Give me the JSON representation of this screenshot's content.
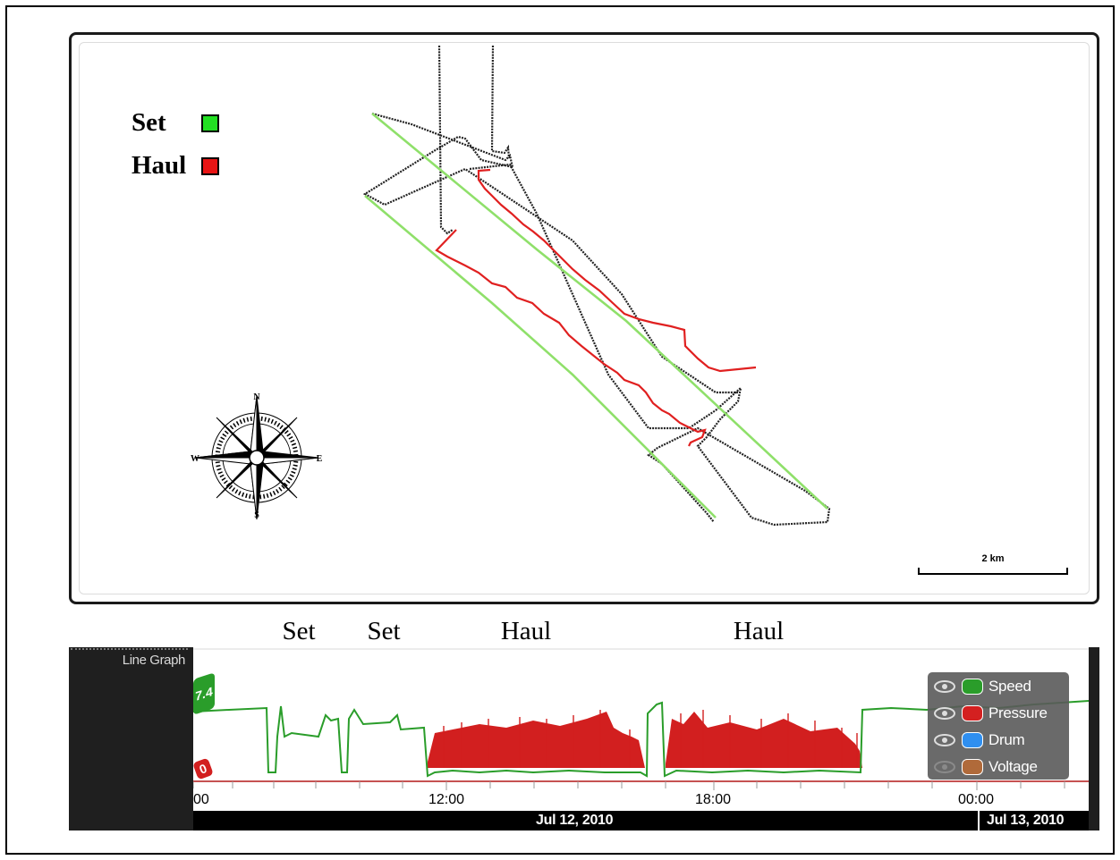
{
  "map": {
    "legend": [
      {
        "label": "Set",
        "color": "#22e022"
      },
      {
        "label": "Haul",
        "color": "#e81414"
      }
    ],
    "compass": {
      "n": "N",
      "s": "S",
      "e": "E",
      "w": "W"
    },
    "scalebar_label": "2 km"
  },
  "annotations": [
    {
      "label": "Set"
    },
    {
      "label": "Set"
    },
    {
      "label": "Haul"
    },
    {
      "label": "Haul"
    }
  ],
  "line_graph": {
    "title": "Line Graph",
    "speed_badge": "7.4",
    "pressure_badge": "0",
    "time_ticks": [
      "00",
      "12:00",
      "18:00",
      "00:00"
    ],
    "dates": [
      "Jul 12, 2010",
      "Jul 13, 2010"
    ],
    "series": [
      {
        "name": "Speed",
        "color": "#2a9d2a",
        "visible": true
      },
      {
        "name": "Pressure",
        "color": "#d42020",
        "visible": true
      },
      {
        "name": "Drum",
        "color": "#2f8ff0",
        "visible": true
      },
      {
        "name": "Voltage",
        "color": "#b06a3a",
        "visible": false
      }
    ]
  },
  "colors": {
    "track": "#222222",
    "set": "#8fe06a",
    "haul": "#e02020",
    "speed": "#2a9d2a",
    "pressure": "#d42020"
  }
}
